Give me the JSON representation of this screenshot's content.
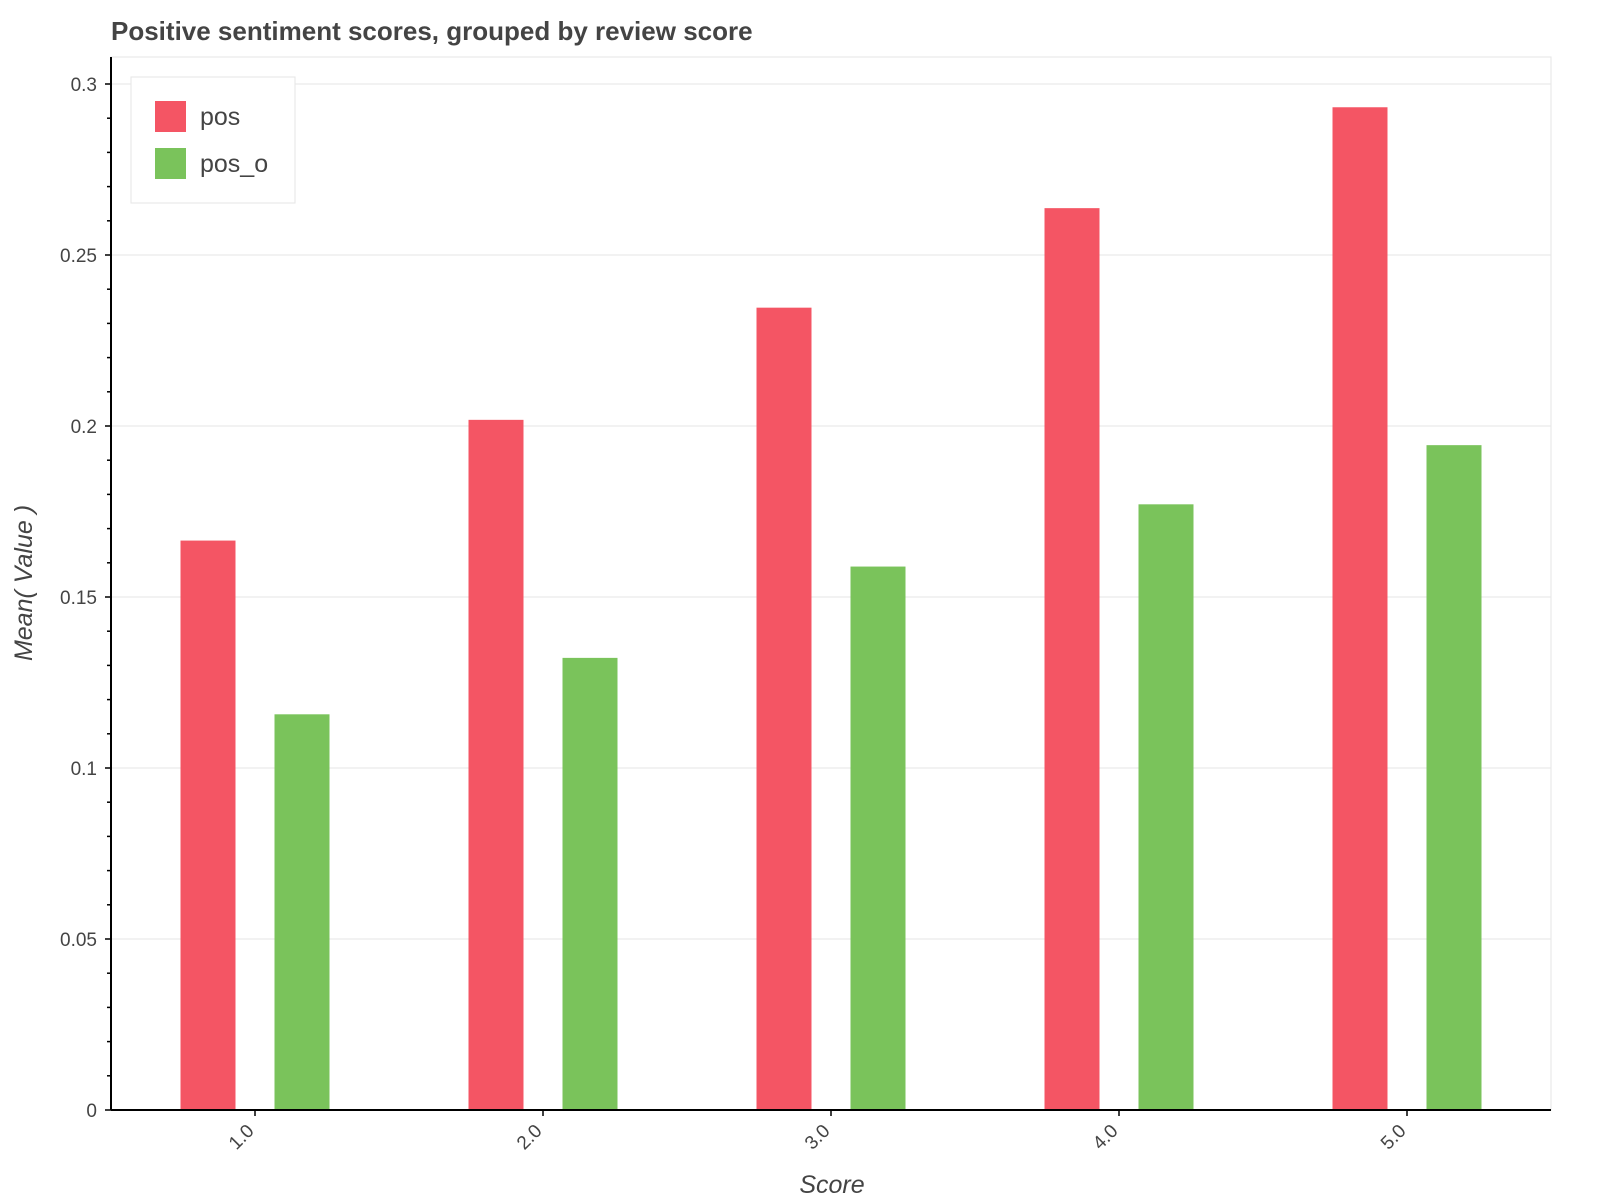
{
  "chart_data": {
    "type": "bar",
    "title": "Positive sentiment scores, grouped by review score",
    "xlabel": "Score",
    "ylabel": "Mean( Value )",
    "categories": [
      "1.0",
      "2.0",
      "3.0",
      "4.0",
      "5.0"
    ],
    "series": [
      {
        "name": "pos",
        "color": "#f45564",
        "values": [
          0.1665,
          0.2018,
          0.2346,
          0.2637,
          0.2932
        ]
      },
      {
        "name": "pos_o",
        "color": "#7ac35b",
        "values": [
          0.1157,
          0.1322,
          0.1589,
          0.1771,
          0.1944
        ]
      }
    ],
    "ylim": [
      0,
      0.3
    ],
    "yticks": [
      0,
      0.05,
      0.1,
      0.15,
      0.2,
      0.25,
      0.3
    ],
    "ytick_labels": [
      "0",
      "0.05",
      "0.1",
      "0.15",
      "0.2",
      "0.25",
      "0.3"
    ],
    "grid": true,
    "legend_position": "top-left"
  }
}
